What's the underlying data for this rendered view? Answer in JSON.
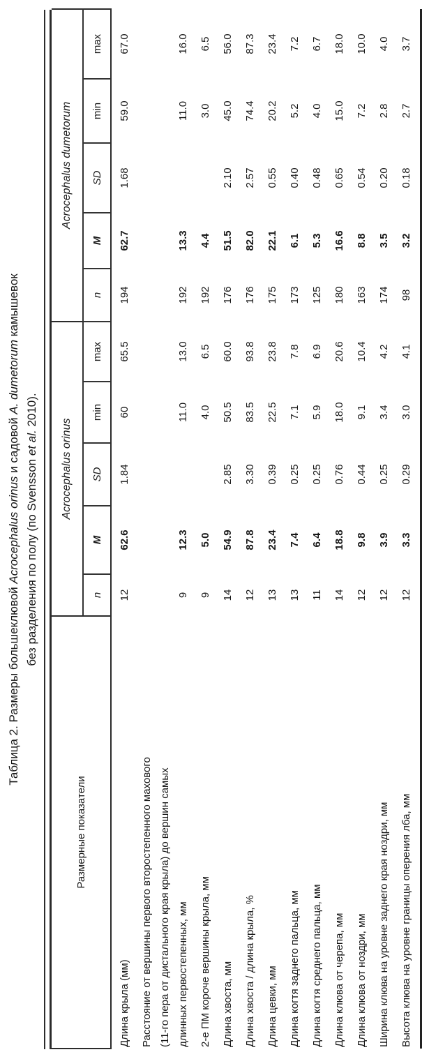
{
  "title": {
    "line1": [
      {
        "t": "Таблица 2. Размеры большеклювой "
      },
      {
        "t": "Acrocephalus orinus",
        "i": true
      },
      {
        "t": " и садовой "
      },
      {
        "t": "A. dumetorum",
        "i": true
      },
      {
        "t": " камышевок"
      }
    ],
    "line2": [
      {
        "t": "без разделения по полу (по Svensson "
      },
      {
        "t": "et al.",
        "i": true
      },
      {
        "t": " 2010)."
      }
    ]
  },
  "table": {
    "label_header": "Размерные показатели",
    "groups": [
      {
        "name": "Acrocephalus orinus"
      },
      {
        "name": "Acrocephalus dumetorum"
      }
    ],
    "stat_headers": [
      "n",
      "M",
      "SD",
      "min",
      "max"
    ],
    "rows": [
      {
        "label": [
          "Длина крыла (мм)"
        ],
        "orinus": [
          "12",
          "62.6",
          "1.84",
          "60",
          "65.5"
        ],
        "dumetorum": [
          "194",
          "62.7",
          "1.68",
          "59.0",
          "67.0"
        ]
      },
      {
        "label": [
          "Расстояние от вершины первого второстепенного махового",
          "(11-го пера от дистального края крыла) до вершин самых",
          "длинных первостепенных, мм"
        ],
        "orinus": [
          "9",
          "12.3",
          "",
          "11.0",
          "13.0"
        ],
        "dumetorum": [
          "192",
          "13.3",
          "",
          "11.0",
          "16.0"
        ]
      },
      {
        "label": [
          "2-е ПМ короче вершины крыла, мм"
        ],
        "orinus": [
          "9",
          "5.0",
          "",
          "4.0",
          "6.5"
        ],
        "dumetorum": [
          "192",
          "4.4",
          "",
          "3.0",
          "6.5"
        ]
      },
      {
        "label": [
          "Длина хвоста, мм"
        ],
        "orinus": [
          "14",
          "54.9",
          "2.85",
          "50.5",
          "60.0"
        ],
        "dumetorum": [
          "176",
          "51.5",
          "2.10",
          "45.0",
          "56.0"
        ]
      },
      {
        "label": [
          "Длина хвоста / длина крыла, %"
        ],
        "orinus": [
          "12",
          "87.8",
          "3.30",
          "83.5",
          "93.8"
        ],
        "dumetorum": [
          "176",
          "82.0",
          "2.57",
          "74.4",
          "87.3"
        ]
      },
      {
        "label": [
          "Длина цевки, мм"
        ],
        "orinus": [
          "13",
          "23.4",
          "0.39",
          "22.5",
          "23.8"
        ],
        "dumetorum": [
          "175",
          "22.1",
          "0.55",
          "20.2",
          "23.4"
        ]
      },
      {
        "label": [
          "Длина когтя заднего пальца, мм"
        ],
        "orinus": [
          "13",
          "7.4",
          "0.25",
          "7.1",
          "7.8"
        ],
        "dumetorum": [
          "173",
          "6.1",
          "0.40",
          "5.2",
          "7.2"
        ]
      },
      {
        "label": [
          "Длина когтя среднего пальца, мм"
        ],
        "orinus": [
          "11",
          "6.4",
          "0.25",
          "5.9",
          "6.9"
        ],
        "dumetorum": [
          "125",
          "5.3",
          "0.48",
          "4.0",
          "6.7"
        ]
      },
      {
        "label": [
          "Длина клюва от черепа, мм"
        ],
        "orinus": [
          "14",
          "18.8",
          "0.76",
          "18.0",
          "20.6"
        ],
        "dumetorum": [
          "180",
          "16.6",
          "0.65",
          "15.0",
          "18.0"
        ]
      },
      {
        "label": [
          "Длина клюва от ноздри, мм"
        ],
        "orinus": [
          "12",
          "9.8",
          "0.44",
          "9.1",
          "10.4"
        ],
        "dumetorum": [
          "163",
          "8.8",
          "0.54",
          "7.2",
          "10.0"
        ]
      },
      {
        "label": [
          "Ширина клюва на уровне заднего края ноздри, мм"
        ],
        "orinus": [
          "12",
          "3.9",
          "0.25",
          "3.4",
          "4.2"
        ],
        "dumetorum": [
          "174",
          "3.5",
          "0.20",
          "2.8",
          "4.0"
        ]
      },
      {
        "label": [
          "Высота клюва на уровне границы оперения лба, мм"
        ],
        "orinus": [
          "12",
          "3.3",
          "0.29",
          "3.0",
          "4.1"
        ],
        "dumetorum": [
          "98",
          "3.2",
          "0.18",
          "2.7",
          "3.7"
        ]
      }
    ]
  }
}
